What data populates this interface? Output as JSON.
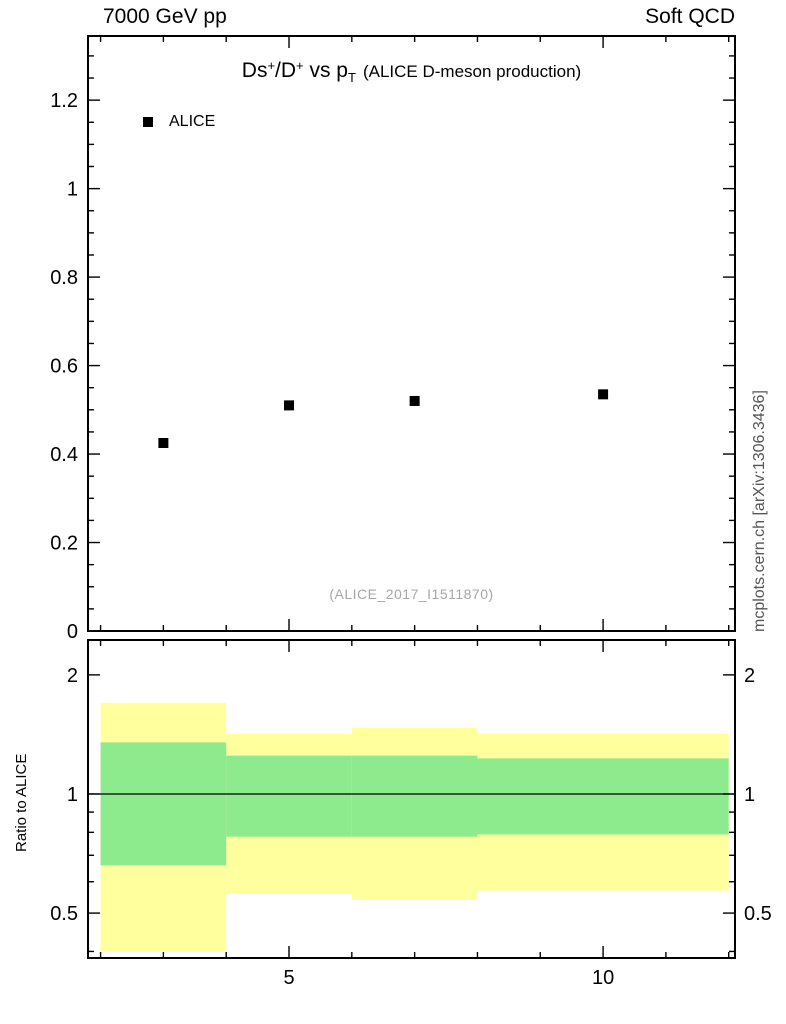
{
  "header": {
    "left": "7000 GeV pp",
    "right": "Soft QCD"
  },
  "title": {
    "p1": "Ds",
    "p2": "+",
    "p3": "/D",
    "p4": "+",
    "p5": " vs p",
    "p6": "T",
    "p7": "(ALICE D-meson production)"
  },
  "legend": {
    "items": [
      {
        "label": "ALICE",
        "marker": "filled-square",
        "color": "#000000"
      }
    ]
  },
  "watermark": "(ALICE_2017_I1511870)",
  "side_caption": "mcplots.cern.ch [arXiv:1306.3436]",
  "ratio_ylabel": "Ratio to ALICE",
  "chart_data": [
    {
      "type": "scatter",
      "panel": "main",
      "title": "Ds+/D+ vs pT (ALICE D-meson production)",
      "xlim": [
        1.8,
        12.1
      ],
      "ylim": [
        0,
        1.345
      ],
      "grid": false,
      "yticks": [
        {
          "v": 0,
          "label": "0"
        },
        {
          "v": 0.2,
          "label": "0.2"
        },
        {
          "v": 0.4,
          "label": "0.4"
        },
        {
          "v": 0.6,
          "label": "0.6"
        },
        {
          "v": 0.8,
          "label": "0.8"
        },
        {
          "v": 1,
          "label": "1"
        },
        {
          "v": 1.2,
          "label": "1.2"
        }
      ],
      "yticks_minor": [
        0.05,
        0.1,
        0.15,
        0.25,
        0.3,
        0.35,
        0.45,
        0.5,
        0.55,
        0.65,
        0.7,
        0.75,
        0.85,
        0.9,
        0.95,
        1.05,
        1.1,
        1.15,
        1.25,
        1.3
      ],
      "xticks": [
        {
          "v": 5,
          "label": "5"
        },
        {
          "v": 10,
          "label": "10"
        }
      ],
      "xticks_minor": [
        2,
        3,
        4,
        6,
        7,
        8,
        9,
        11,
        12
      ],
      "series": [
        {
          "name": "ALICE",
          "marker": "filled-square",
          "color": "#000000",
          "points": [
            {
              "x": 3,
              "y": 0.425
            },
            {
              "x": 5,
              "y": 0.51
            },
            {
              "x": 7,
              "y": 0.52
            },
            {
              "x": 10,
              "y": 0.535
            }
          ]
        }
      ]
    },
    {
      "type": "band",
      "panel": "ratio",
      "ylabel": "Ratio to ALICE",
      "yscale": "log",
      "ylim": [
        0.385,
        2.45
      ],
      "yticks": [
        {
          "v": 0.5,
          "label": "0.5"
        },
        {
          "v": 1,
          "label": "1"
        },
        {
          "v": 2,
          "label": "2"
        }
      ],
      "yticks_minor": [
        0.4,
        0.6,
        0.7,
        0.8,
        0.9
      ],
      "reference_line": 1,
      "colors": {
        "outer_band": "#ffff9e",
        "inner_band": "#8deb8d"
      },
      "bands": [
        {
          "x1": 2,
          "x2": 4,
          "outer": [
            0.4,
            1.7
          ],
          "inner": [
            0.66,
            1.35
          ]
        },
        {
          "x1": 4,
          "x2": 6,
          "outer": [
            0.56,
            1.42
          ],
          "inner": [
            0.78,
            1.25
          ]
        },
        {
          "x1": 6,
          "x2": 8,
          "outer": [
            0.54,
            1.47
          ],
          "inner": [
            0.78,
            1.25
          ]
        },
        {
          "x1": 8,
          "x2": 12,
          "outer": [
            0.57,
            1.42
          ],
          "inner": [
            0.79,
            1.23
          ]
        }
      ]
    }
  ]
}
